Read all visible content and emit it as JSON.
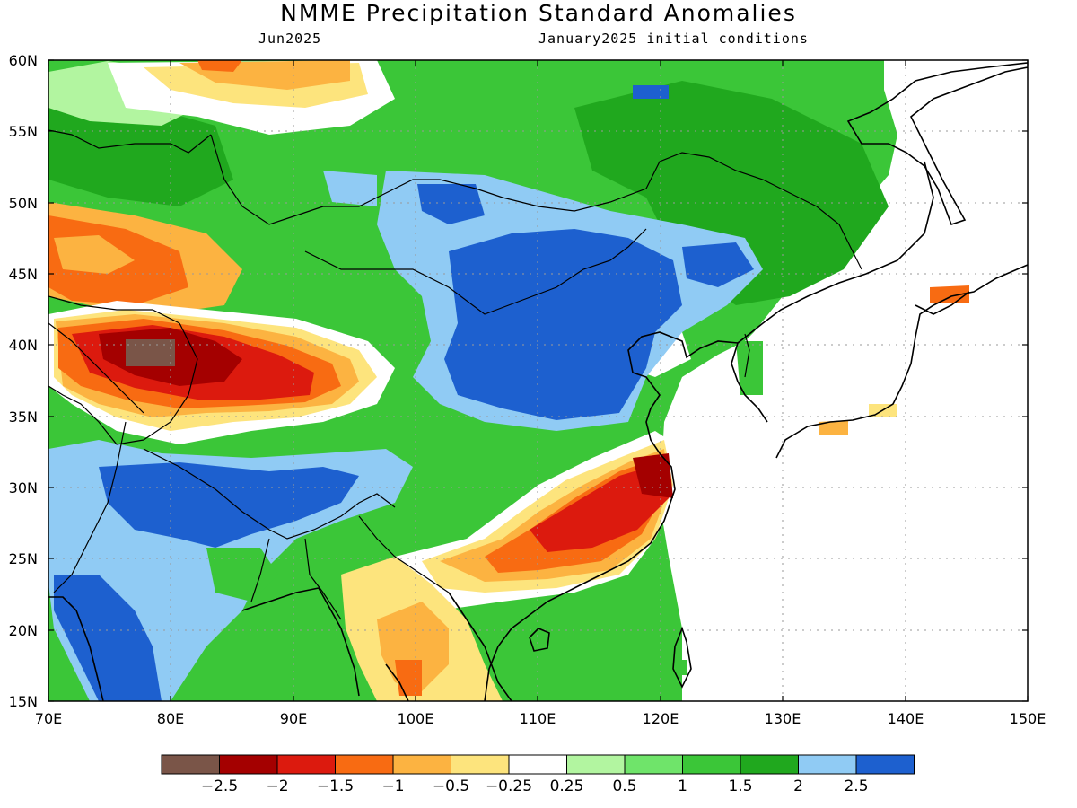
{
  "title": "NMME Precipitation Standard Anomalies",
  "subtitle_left": "Jun2025",
  "subtitle_right": "January2025 initial conditions",
  "lon_ticks": [
    "70E",
    "80E",
    "90E",
    "100E",
    "110E",
    "120E",
    "130E",
    "140E",
    "150E"
  ],
  "lat_ticks": [
    "60N",
    "55N",
    "50N",
    "45N",
    "40N",
    "35N",
    "30N",
    "25N",
    "20N",
    "15N"
  ],
  "colorbar": {
    "colors": [
      "#7a5548",
      "#a40000",
      "#dc1a0e",
      "#f86b12",
      "#fcb341",
      "#fde47d",
      "#ffffff",
      "#b2f5a0",
      "#6fe46a",
      "#3bc638",
      "#20a81e",
      "#90cbf4",
      "#1d60cf"
    ],
    "labels": [
      "−2.5",
      "−2",
      "−1.5",
      "−1",
      "−0.5",
      "−0.25",
      "0.25",
      "0.5",
      "1",
      "1.5",
      "2",
      "2.5"
    ]
  },
  "map_colors": {
    "coast": "#000000",
    "gridline": "#9a9a9a"
  }
}
